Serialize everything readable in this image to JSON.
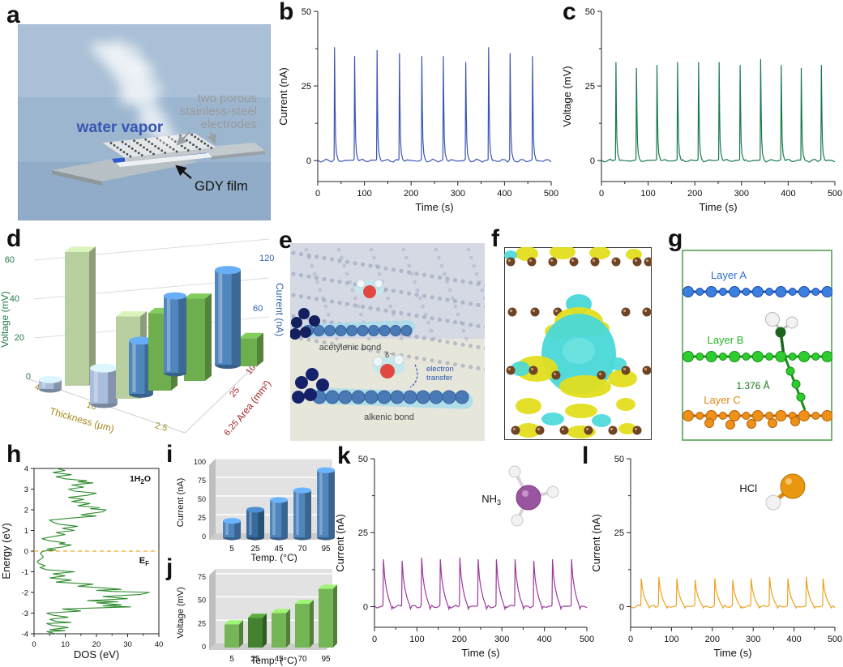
{
  "panels": {
    "a": {
      "letter": "a"
    },
    "b": {
      "letter": "b"
    },
    "c": {
      "letter": "c"
    },
    "d": {
      "letter": "d"
    },
    "e": {
      "letter": "e"
    },
    "f": {
      "letter": "f"
    },
    "g": {
      "letter": "g"
    },
    "h": {
      "letter": "h"
    },
    "i": {
      "letter": "i"
    },
    "j": {
      "letter": "j"
    },
    "k": {
      "letter": "k"
    },
    "l": {
      "letter": "l"
    }
  },
  "panel_a": {
    "vapor_label": "water vapor",
    "electrode_label_lines": [
      "two porous",
      "stainless-steel",
      "electrodes"
    ],
    "film_label": "GDY film",
    "background_color": "#9db6d0",
    "film_color": "#2e59cf"
  },
  "panel_e": {
    "bond1_label": "acetylenic bond",
    "bond2_label": "alkenic bond",
    "transfer_label_lines": [
      "electron",
      "transfer"
    ],
    "delta_label": "δ⁻"
  },
  "panel_f": {
    "positive_isosurface_color": "#e3de1f",
    "negative_isosurface_color": "#49d8d8",
    "atom_color": "#6f4424"
  },
  "panel_g": {
    "layer_a_label": "Layer A",
    "layer_b_label": "Layer B",
    "layer_c_label": "Layer C",
    "bond_length_label": "1.376 Å",
    "layer_a_color": "#2a6fd4",
    "layer_b_color": "#27b427",
    "layer_c_color": "#e08818",
    "bond_length_color": "#1c7a1c"
  },
  "chart_data": [
    {
      "id": "b",
      "type": "line",
      "subtype": "spike-train",
      "xlabel": "Time (s)",
      "ylabel": "Current (nA)",
      "xlim": [
        0,
        500
      ],
      "ylim": [
        -7,
        50
      ],
      "xticks": [
        0,
        100,
        200,
        300,
        400,
        500
      ],
      "yticks": [
        0,
        25,
        50
      ],
      "line_color": "#3a55b3",
      "decay": "fast",
      "spike_times": [
        35,
        78,
        126,
        174,
        222,
        268,
        316,
        365,
        411,
        459
      ],
      "spike_peaks": [
        38,
        35,
        37,
        36,
        35,
        35,
        33,
        38,
        36,
        35
      ]
    },
    {
      "id": "c",
      "type": "line",
      "subtype": "spike-train",
      "xlabel": "Time (s)",
      "ylabel": "Voltage (mV)",
      "xlim": [
        0,
        500
      ],
      "ylim": [
        -7,
        50
      ],
      "xticks": [
        0,
        100,
        200,
        300,
        400,
        500
      ],
      "yticks": [
        0,
        25,
        50
      ],
      "line_color": "#177a4c",
      "decay": "fast",
      "spike_times": [
        30,
        74,
        118,
        162,
        207,
        251,
        296,
        340,
        384,
        427,
        470
      ],
      "spike_peaks": [
        33,
        31,
        32,
        33,
        33,
        33,
        32,
        34,
        32,
        31,
        32
      ]
    },
    {
      "id": "d",
      "type": "3d-bar",
      "axes": {
        "voltage": {
          "label": "Voltage (mV)",
          "ticks": [
            0,
            20,
            40,
            60
          ],
          "color": "#1f7a46"
        },
        "current": {
          "label": "Current (nA)",
          "ticks": [
            0,
            60,
            120
          ],
          "color": "#2d5fa8"
        },
        "thickness": {
          "label": "Thickness (μm)",
          "ticks": [
            "40",
            "10",
            "2.5"
          ],
          "color": "#a3891d"
        },
        "area": {
          "label": "Area (mm²)",
          "ticks": [
            "100",
            "25",
            "6.25"
          ],
          "color": "#a02525"
        }
      },
      "series": {
        "thickness": {
          "categories": [
            "40",
            "10"
          ],
          "voltage_mV": [
            57,
            35
          ],
          "current_nA": [
            8,
            30
          ]
        },
        "area": {
          "categories": [
            "100",
            "25",
            "6.25"
          ],
          "voltage_mV": [
            33,
            35,
            12
          ],
          "current_nA": [
            45,
            65,
            80
          ]
        }
      },
      "bar_colors": {
        "voltage_light": "#b9cf9f",
        "voltage_dark": "#6fae4e",
        "current_light": "#aabddc",
        "current_dark": "#4f86be"
      }
    },
    {
      "id": "h",
      "type": "line",
      "subtype": "dos",
      "xlabel": "DOS (eV)",
      "ylabel": "Energy (eV)",
      "xlim": [
        0,
        40
      ],
      "ylim": [
        -4,
        4
      ],
      "xticks": [
        0,
        10,
        20,
        30,
        40
      ],
      "yticks": [
        -4,
        -3,
        -2,
        -1,
        0,
        1,
        2,
        3,
        4
      ],
      "line_color": "#2e8b2e",
      "annotation": [
        {
          "t": "1H"
        },
        {
          "t": "2",
          "sub": true
        },
        {
          "t": "O"
        }
      ],
      "fermi": {
        "energy": 0,
        "color": "#f5a623",
        "label": [
          {
            "t": "E"
          },
          {
            "t": "F",
            "sub": true
          }
        ]
      },
      "points": [
        [
          -4,
          7
        ],
        [
          -3.9,
          4
        ],
        [
          -3.85,
          10
        ],
        [
          -3.8,
          5
        ],
        [
          -3.7,
          11
        ],
        [
          -3.6,
          6
        ],
        [
          -3.5,
          4
        ],
        [
          -3.45,
          12
        ],
        [
          -3.4,
          7
        ],
        [
          -3.3,
          5
        ],
        [
          -3.2,
          11
        ],
        [
          -3.1,
          6
        ],
        [
          -3,
          4
        ],
        [
          -2.9,
          15
        ],
        [
          -2.8,
          9
        ],
        [
          -2.7,
          31
        ],
        [
          -2.65,
          22
        ],
        [
          -2.6,
          28
        ],
        [
          -2.5,
          20
        ],
        [
          -2.45,
          27
        ],
        [
          -2.4,
          17
        ],
        [
          -2.3,
          30
        ],
        [
          -2.2,
          22
        ],
        [
          -2.1,
          34
        ],
        [
          -2,
          37
        ],
        [
          -1.95,
          25
        ],
        [
          -1.9,
          20
        ],
        [
          -1.85,
          28
        ],
        [
          -1.8,
          24
        ],
        [
          -1.7,
          14
        ],
        [
          -1.6,
          19
        ],
        [
          -1.5,
          7
        ],
        [
          -1.4,
          12
        ],
        [
          -1.3,
          5
        ],
        [
          -1.2,
          10
        ],
        [
          -1.1,
          6
        ],
        [
          -1,
          13
        ],
        [
          -0.9,
          4
        ],
        [
          -0.8,
          2
        ],
        [
          -0.7,
          3.5
        ],
        [
          -0.6,
          1.5
        ],
        [
          -0.5,
          1
        ],
        [
          -0.4,
          2
        ],
        [
          -0.3,
          3
        ],
        [
          -0.2,
          2.5
        ],
        [
          -0.1,
          2
        ],
        [
          0,
          3
        ],
        [
          0.05,
          7
        ],
        [
          0.1,
          4
        ],
        [
          0.2,
          9
        ],
        [
          0.3,
          12
        ],
        [
          0.35,
          8
        ],
        [
          0.4,
          10
        ],
        [
          0.5,
          5
        ],
        [
          0.6,
          2.5
        ],
        [
          0.7,
          6
        ],
        [
          0.8,
          10
        ],
        [
          0.9,
          7
        ],
        [
          1,
          13
        ],
        [
          1.1,
          9
        ],
        [
          1.2,
          14
        ],
        [
          1.3,
          8
        ],
        [
          1.4,
          6
        ],
        [
          1.5,
          5
        ],
        [
          1.6,
          12
        ],
        [
          1.7,
          20
        ],
        [
          1.75,
          15
        ],
        [
          1.8,
          17
        ],
        [
          1.9,
          22
        ],
        [
          2,
          23
        ],
        [
          2.05,
          18
        ],
        [
          2.1,
          21
        ],
        [
          2.2,
          14
        ],
        [
          2.3,
          18
        ],
        [
          2.4,
          12
        ],
        [
          2.5,
          16
        ],
        [
          2.6,
          11
        ],
        [
          2.7,
          17
        ],
        [
          2.8,
          20
        ],
        [
          2.9,
          13
        ],
        [
          3,
          11
        ],
        [
          3.1,
          16
        ],
        [
          3.2,
          12
        ],
        [
          3.3,
          19
        ],
        [
          3.35,
          14
        ],
        [
          3.4,
          17
        ],
        [
          3.5,
          10
        ],
        [
          3.6,
          7
        ],
        [
          3.7,
          12
        ],
        [
          3.8,
          6
        ],
        [
          3.9,
          10
        ],
        [
          4,
          7
        ]
      ]
    },
    {
      "id": "i",
      "type": "bar",
      "bar_style": "cylinder",
      "categories": [
        "5",
        "25",
        "45",
        "70",
        "95"
      ],
      "values": [
        22,
        37,
        50,
        63,
        90
      ],
      "xlabel": "Temp. (°C)",
      "ylabel": "Current (nA)",
      "yticks": [
        0,
        25,
        50,
        75,
        100
      ],
      "ylim": [
        0,
        100
      ],
      "bar_colors": [
        "#4f86be",
        "#38699b",
        "#4f86be",
        "#4f86be",
        "#4f86be"
      ]
    },
    {
      "id": "j",
      "type": "bar",
      "bar_style": "cuboid",
      "categories": [
        "5",
        "25",
        "45",
        "70",
        "95"
      ],
      "values": [
        25,
        32,
        37,
        47,
        63
      ],
      "xlabel": "Temp. (°C)",
      "ylabel": "Voltage (mV)",
      "yticks": [
        0,
        25,
        50,
        75
      ],
      "ylim": [
        0,
        80
      ],
      "bar_colors": [
        "#74b656",
        "#44822f",
        "#74b656",
        "#74b656",
        "#74b656"
      ]
    },
    {
      "id": "k",
      "type": "line",
      "subtype": "spike-train",
      "xlabel": "Time (s)",
      "ylabel": "Current (nA)",
      "xlim": [
        0,
        500
      ],
      "ylim": [
        -7,
        50
      ],
      "xticks": [
        0,
        100,
        200,
        300,
        400,
        500
      ],
      "yticks": [
        0,
        25,
        50
      ],
      "line_color": "#9b3a9e",
      "decay": "slow",
      "spike_times": [
        20,
        64,
        110,
        154,
        200,
        243,
        286,
        330,
        374,
        418,
        463
      ],
      "spike_peaks": [
        16,
        15.5,
        16.5,
        16,
        16.5,
        16,
        16,
        16,
        15.5,
        16,
        16
      ],
      "molecule": {
        "name": "NH3",
        "label": [
          {
            "t": "NH"
          },
          {
            "t": "3",
            "sub": true
          }
        ],
        "center_color": "#9a55a0",
        "h_color": "#f2f2f2"
      }
    },
    {
      "id": "l",
      "type": "line",
      "subtype": "spike-train",
      "xlabel": "Time (s)",
      "ylabel": "Current (nA)",
      "xlim": [
        0,
        500
      ],
      "ylim": [
        -7,
        50
      ],
      "xticks": [
        0,
        100,
        200,
        300,
        400,
        500
      ],
      "yticks": [
        0,
        25,
        50
      ],
      "line_color": "#efa21f",
      "decay": "slow",
      "spike_times": [
        25,
        68,
        112,
        157,
        205,
        249,
        294,
        339,
        384,
        429,
        470
      ],
      "spike_peaks": [
        9.5,
        10,
        9.5,
        9,
        9.5,
        9,
        9.5,
        10,
        9.5,
        10,
        9.5
      ],
      "molecule": {
        "name": "HCl",
        "label": [
          {
            "t": "HCl"
          }
        ],
        "center_color": "#e8970f",
        "h_color": "#f2f2f2"
      }
    }
  ]
}
